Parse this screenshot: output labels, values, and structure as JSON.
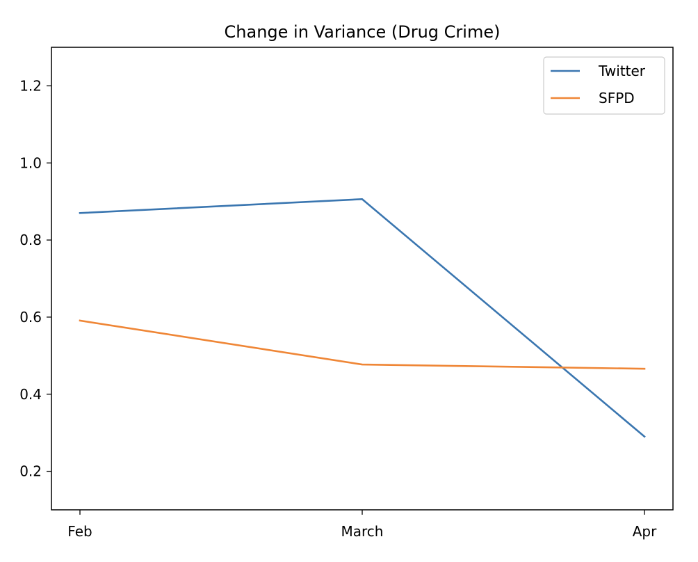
{
  "chart_data": {
    "type": "line",
    "title": "Change in Variance (Drug Crime)",
    "xlabel": "",
    "ylabel": "",
    "categories": [
      "Feb",
      "March",
      "Apr"
    ],
    "series": [
      {
        "name": "Twitter",
        "color": "#3a76b0",
        "values": [
          0.87,
          0.906,
          0.29
        ]
      },
      {
        "name": "SFPD",
        "color": "#ef8636",
        "values": [
          0.591,
          0.477,
          0.466
        ]
      }
    ],
    "ylim": [
      0.1,
      1.3
    ],
    "yticks": [
      0.2,
      0.4,
      0.6,
      0.8,
      1.0,
      1.2
    ],
    "ytick_labels": [
      "0.2",
      "0.4",
      "0.6",
      "0.8",
      "1.0",
      "1.2"
    ],
    "grid": false,
    "legend_position": "top-right"
  }
}
